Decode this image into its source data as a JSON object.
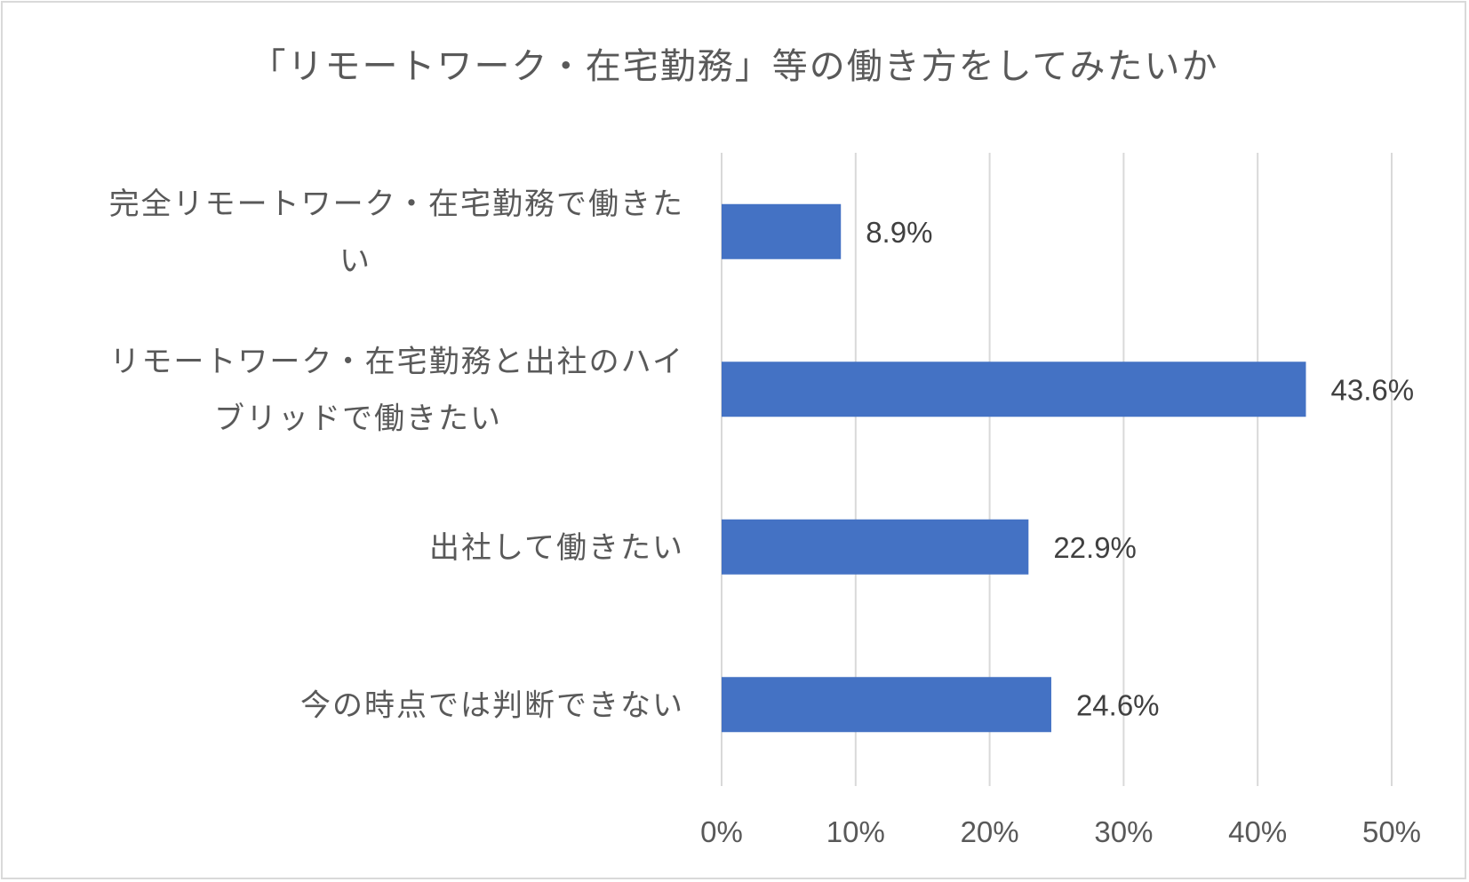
{
  "chart_data": {
    "type": "bar",
    "orientation": "horizontal",
    "title": "「リモートワーク・在宅勤務」等の働き方をしてみたいか",
    "categories": [
      [
        "完全リモートワーク・在宅勤務で働きた",
        "い"
      ],
      [
        "リモートワーク・在宅勤務と出社のハイ",
        "ブリッドで働きたい"
      ],
      [
        "出社して働きたい"
      ],
      [
        "今の時点では判断できない"
      ]
    ],
    "values": [
      8.9,
      43.6,
      22.9,
      24.6
    ],
    "data_labels": [
      "8.9%",
      "43.6%",
      "22.9%",
      "24.6%"
    ],
    "xlim": [
      0,
      50
    ],
    "ticks": [
      0,
      10,
      20,
      30,
      40,
      50
    ],
    "tick_labels": [
      "0%",
      "10%",
      "20%",
      "30%",
      "40%",
      "50%"
    ],
    "grid": true,
    "bar_color": "#4472c4",
    "grid_color": "#d9d9d9"
  }
}
